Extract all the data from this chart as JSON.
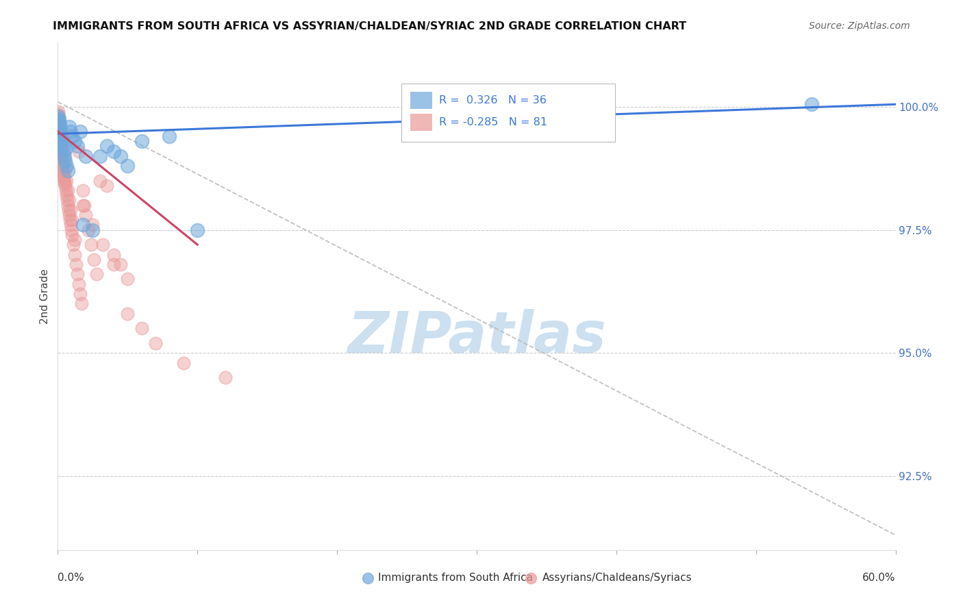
{
  "title": "IMMIGRANTS FROM SOUTH AFRICA VS ASSYRIAN/CHALDEAN/SYRIAC 2ND GRADE CORRELATION CHART",
  "source": "Source: ZipAtlas.com",
  "ylabel": "2nd Grade",
  "blue_R": 0.326,
  "blue_N": 36,
  "pink_R": -0.285,
  "pink_N": 81,
  "blue_color": "#6fa8dc",
  "pink_color": "#ea9999",
  "blue_line_color": "#3c78d8",
  "pink_line_color": "#cc4466",
  "legend_label_blue": "Immigrants from South Africa",
  "legend_label_pink": "Assyrians/Chaldeans/Syriacs",
  "xlim": [
    0,
    60
  ],
  "ylim": [
    91.0,
    101.3
  ],
  "right_yticks": [
    92.5,
    95.0,
    97.5,
    100.0
  ],
  "right_ytick_labels": [
    "92.5%",
    "95.0%",
    "97.5%",
    "100.0%"
  ],
  "blue_trend_x0": 0,
  "blue_trend_y0": 99.45,
  "blue_trend_x1": 60,
  "blue_trend_y1": 100.05,
  "pink_trend_x0": 0,
  "pink_trend_y0": 99.5,
  "pink_trend_x1": 10,
  "pink_trend_y1": 97.2,
  "gray_dash_x0": 0,
  "gray_dash_y0": 100.1,
  "gray_dash_x1": 60,
  "gray_dash_y1": 91.3,
  "blue_pts_x": [
    0.05,
    0.08,
    0.1,
    0.12,
    0.15,
    0.18,
    0.2,
    0.22,
    0.25,
    0.28,
    0.3,
    0.35,
    0.4,
    0.45,
    0.5,
    0.55,
    0.6,
    0.7,
    0.8,
    0.9,
    1.0,
    1.2,
    1.4,
    1.6,
    1.8,
    2.0,
    2.5,
    3.0,
    3.5,
    4.0,
    4.5,
    5.0,
    6.0,
    8.0,
    10.0,
    54.0
  ],
  "blue_pts_y": [
    99.8,
    99.75,
    99.7,
    99.65,
    99.6,
    99.55,
    99.5,
    99.45,
    99.4,
    99.35,
    99.3,
    99.2,
    99.1,
    99.0,
    98.9,
    99.15,
    98.8,
    98.7,
    99.6,
    99.5,
    99.4,
    99.3,
    99.2,
    99.5,
    97.6,
    99.0,
    97.5,
    99.0,
    99.2,
    99.1,
    99.0,
    98.8,
    99.3,
    99.4,
    97.5,
    100.05
  ],
  "pink_pts_x": [
    0.02,
    0.04,
    0.05,
    0.06,
    0.07,
    0.08,
    0.09,
    0.1,
    0.11,
    0.12,
    0.13,
    0.14,
    0.15,
    0.16,
    0.17,
    0.18,
    0.19,
    0.2,
    0.22,
    0.24,
    0.26,
    0.28,
    0.3,
    0.32,
    0.35,
    0.38,
    0.4,
    0.42,
    0.45,
    0.48,
    0.5,
    0.55,
    0.6,
    0.65,
    0.7,
    0.75,
    0.8,
    0.85,
    0.9,
    0.95,
    1.0,
    1.1,
    1.2,
    1.3,
    1.4,
    1.5,
    1.6,
    1.7,
    1.8,
    1.9,
    2.0,
    2.2,
    2.4,
    2.6,
    2.8,
    3.0,
    3.5,
    4.0,
    4.5,
    5.0,
    0.1,
    0.2,
    0.3,
    0.4,
    0.5,
    0.6,
    0.7,
    0.8,
    0.9,
    1.0,
    1.2,
    1.5,
    1.8,
    2.5,
    3.2,
    4.0,
    5.0,
    6.0,
    7.0,
    9.0,
    12.0
  ],
  "pink_pts_y": [
    99.9,
    99.85,
    99.8,
    99.75,
    99.7,
    99.65,
    99.6,
    99.55,
    99.5,
    99.45,
    99.4,
    99.35,
    99.3,
    99.25,
    99.2,
    99.15,
    99.1,
    99.05,
    99.0,
    98.95,
    98.9,
    98.85,
    98.8,
    98.75,
    98.7,
    98.65,
    98.6,
    98.55,
    98.5,
    98.45,
    98.4,
    98.3,
    98.2,
    98.1,
    98.0,
    97.9,
    97.8,
    97.7,
    97.6,
    97.5,
    97.4,
    97.2,
    97.0,
    96.8,
    96.6,
    96.4,
    96.2,
    96.0,
    98.3,
    98.0,
    97.8,
    97.5,
    97.2,
    96.9,
    96.6,
    98.5,
    98.4,
    97.0,
    96.8,
    96.5,
    99.5,
    99.3,
    99.1,
    98.9,
    98.7,
    98.5,
    98.3,
    98.1,
    97.9,
    97.7,
    97.3,
    99.1,
    98.0,
    97.6,
    97.2,
    96.8,
    95.8,
    95.5,
    95.2,
    94.8,
    94.5
  ]
}
